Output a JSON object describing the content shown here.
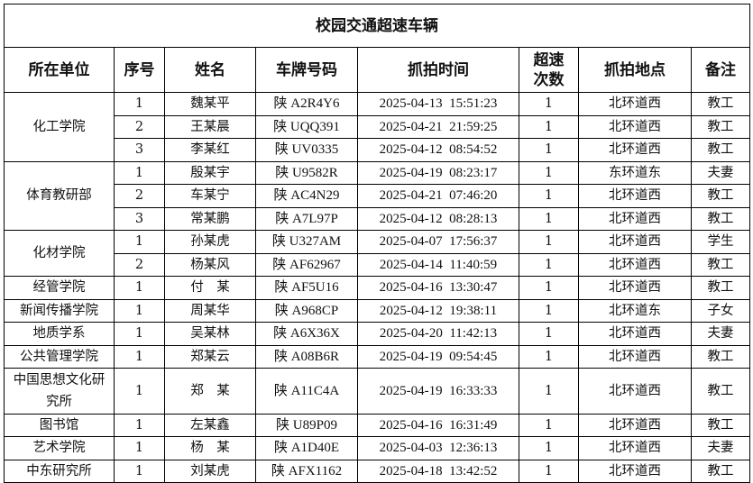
{
  "title": "校园交通超速车辆",
  "headers": [
    "所在单位",
    "序号",
    "姓名",
    "车牌号码",
    "抓拍时间",
    "超速次数",
    "抓拍地点",
    "备注"
  ],
  "groups": [
    {
      "unit": "化工学院",
      "rows": [
        {
          "no": "1",
          "name": "魏某平",
          "plate": "陕 A2R4Y6",
          "time": "2025-04-13  15:51:23",
          "count": "1",
          "place": "北环道西",
          "note": "教工"
        },
        {
          "no": "2",
          "name": "王某晨",
          "plate": "陕 UQQ391",
          "time": "2025-04-21  21:59:25",
          "count": "1",
          "place": "北环道西",
          "note": "教工"
        },
        {
          "no": "3",
          "name": "李某红",
          "plate": "陕 UV0335",
          "time": "2025-04-12  08:54:52",
          "count": "1",
          "place": "北环道西",
          "note": "教工"
        }
      ]
    },
    {
      "unit": "体育教研部",
      "rows": [
        {
          "no": "1",
          "name": "殷某宇",
          "plate": "陕 U9582R",
          "time": "2025-04-19  08:23:17",
          "count": "1",
          "place": "东环道东",
          "note": "夫妻"
        },
        {
          "no": "2",
          "name": "车某宁",
          "plate": "陕 AC4N29",
          "time": "2025-04-21  07:46:20",
          "count": "1",
          "place": "北环道西",
          "note": "教工"
        },
        {
          "no": "3",
          "name": "常某鹏",
          "plate": "陕 A7L97P",
          "time": "2025-04-12  08:28:13",
          "count": "1",
          "place": "北环道西",
          "note": "教工"
        }
      ]
    },
    {
      "unit": "化材学院",
      "rows": [
        {
          "no": "1",
          "name": "孙某虎",
          "plate": "陕 U327AM",
          "time": "2025-04-07  17:56:37",
          "count": "1",
          "place": "北环道西",
          "note": "学生"
        },
        {
          "no": "2",
          "name": "杨某风",
          "plate": "陕 AF62967",
          "time": "2025-04-14  11:40:59",
          "count": "1",
          "place": "北环道西",
          "note": "教工"
        }
      ]
    },
    {
      "unit": "经管学院",
      "rows": [
        {
          "no": "1",
          "name": "付　某",
          "plate": "陕 AF5U16",
          "time": "2025-04-16  13:30:47",
          "count": "1",
          "place": "北环道西",
          "note": "教工"
        }
      ]
    },
    {
      "unit": "新闻传播学院",
      "rows": [
        {
          "no": "1",
          "name": "周某华",
          "plate": "陕 A968CP",
          "time": "2025-04-12  19:38:11",
          "count": "1",
          "place": "北环道东",
          "note": "子女"
        }
      ]
    },
    {
      "unit": "地质学系",
      "rows": [
        {
          "no": "1",
          "name": "吴某林",
          "plate": "陕 A6X36X",
          "time": "2025-04-20  11:42:13",
          "count": "1",
          "place": "北环道西",
          "note": "夫妻"
        }
      ]
    },
    {
      "unit": "公共管理学院",
      "rows": [
        {
          "no": "1",
          "name": "郑某云",
          "plate": "陕 A08B6R",
          "time": "2025-04-19  09:54:45",
          "count": "1",
          "place": "北环道西",
          "note": "教工"
        }
      ]
    },
    {
      "unit": "中国思想文化研究所",
      "tall": true,
      "rows": [
        {
          "no": "1",
          "name": "郑　某",
          "plate": "陕 A11C4A",
          "time": "2025-04-19  16:33:33",
          "count": "1",
          "place": "北环道西",
          "note": "教工"
        }
      ]
    },
    {
      "unit": "图书馆",
      "rows": [
        {
          "no": "1",
          "name": "左某鑫",
          "plate": "陕 U89P09",
          "time": "2025-04-16  16:31:49",
          "count": "1",
          "place": "北环道西",
          "note": "教工"
        }
      ]
    },
    {
      "unit": "艺术学院",
      "rows": [
        {
          "no": "1",
          "name": "杨　某",
          "plate": "陕 A1D40E",
          "time": "2025-04-03  12:36:13",
          "count": "1",
          "place": "北环道西",
          "note": "夫妻"
        }
      ]
    },
    {
      "unit": "中东研究所",
      "rows": [
        {
          "no": "1",
          "name": "刘某虎",
          "plate": "陕 AFX1162",
          "time": "2025-04-18  13:42:52",
          "count": "1",
          "place": "北环道西",
          "note": "教工"
        }
      ]
    }
  ]
}
